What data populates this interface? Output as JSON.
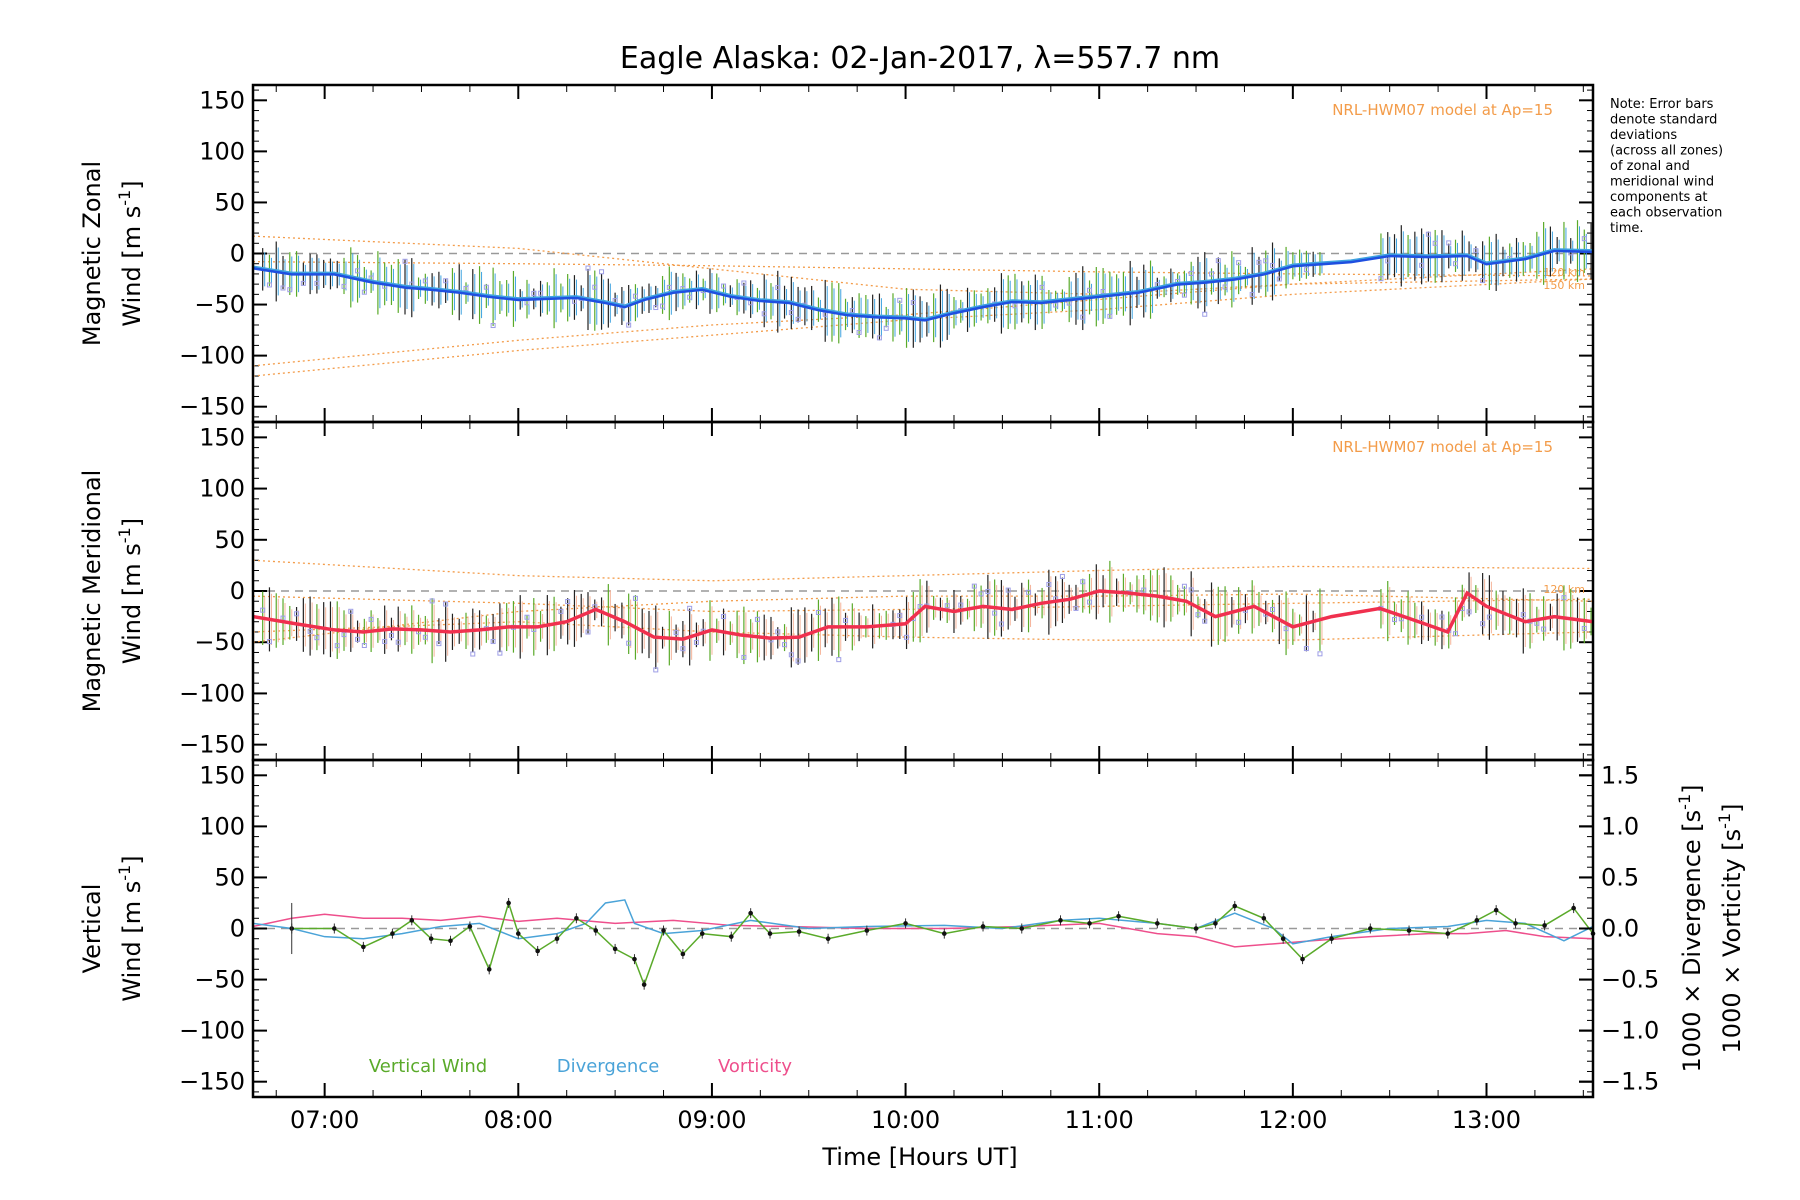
{
  "title": "Eagle Alaska: 02-Jan-2017, λ=557.7 nm",
  "note": [
    "Note: Error bars",
    "denote standard",
    "deviations",
    "(across all zones)",
    "of zonal and",
    "meridional wind",
    "components at",
    "each observation",
    "time."
  ],
  "xlabel": "Time [Hours UT]",
  "x_ticks": [
    "07:00",
    "08:00",
    "09:00",
    "10:00",
    "11:00",
    "12:00",
    "13:00"
  ],
  "colors": {
    "zonal": "#1f4fe0",
    "zonal_err": "#3fa3e0",
    "meridional": "#f0304e",
    "vertical": "#5aaa2a",
    "divergence": "#4aa3d8",
    "vorticity": "#ee4f8c",
    "model": "#f39c4a",
    "zone_marker": "#9e9ee6"
  },
  "panels": [
    {
      "id": "zonal",
      "ylabel_line1": "Magnetic Zonal",
      "ylabel_line2": "Wind [m s",
      "ylabel_sup": "-1",
      "ylabel_close": "]",
      "y_ticks": [
        "150",
        "100",
        "50",
        "0",
        "−50",
        "−100",
        "−150"
      ],
      "model_label": "NRL-HWM07 model at Ap=15",
      "alt_labels": [
        "120 km",
        "150 km"
      ]
    },
    {
      "id": "meridional",
      "ylabel_line1": "Magnetic Meridional",
      "ylabel_line2": "Wind [m s",
      "ylabel_sup": "-1",
      "ylabel_close": "]",
      "y_ticks": [
        "150",
        "100",
        "50",
        "0",
        "−50",
        "−100",
        "−150"
      ],
      "model_label": "NRL-HWM07 model at Ap=15",
      "alt_labels": [
        "120 km"
      ]
    },
    {
      "id": "vertical",
      "ylabel_line1": "Vertical",
      "ylabel_line2": "Wind [m s",
      "ylabel_sup": "-1",
      "ylabel_close": "]",
      "y_ticks": [
        "150",
        "100",
        "50",
        "0",
        "−50",
        "−100",
        "−150"
      ],
      "right_ticks": [
        "1.5",
        "1.0",
        "0.5",
        "0.0",
        "−0.5",
        "−1.0",
        "−1.5"
      ],
      "right_label_div": "1000 × Divergence [s",
      "right_label_vor": "1000 × Vorticity [s",
      "right_label_sup": "-1",
      "right_label_close": "]",
      "legend": [
        "Vertical Wind",
        "Divergence",
        "Vorticity"
      ]
    }
  ],
  "chart_data": {
    "type": "line",
    "title": "Eagle Alaska: 02-Jan-2017, λ=557.7 nm",
    "xlabel": "Time [Hours UT]",
    "xlim": [
      6.63,
      13.55
    ],
    "ylim": [
      -165,
      165
    ],
    "x_unit": "hours UT",
    "series": [
      {
        "name": "Magnetic Zonal Wind",
        "unit": "m s-1",
        "x": [
          6.63,
          6.83,
          7.05,
          7.25,
          7.42,
          7.55,
          7.7,
          7.85,
          8.0,
          8.15,
          8.3,
          8.45,
          8.55,
          8.65,
          8.8,
          8.95,
          9.1,
          9.25,
          9.4,
          9.55,
          9.7,
          9.85,
          10.0,
          10.1,
          10.25,
          10.4,
          10.55,
          10.7,
          10.85,
          11.0,
          11.2,
          11.4,
          11.55,
          11.7,
          11.85,
          12.0,
          12.15,
          12.3,
          12.5,
          12.7,
          12.9,
          13.0,
          13.2,
          13.35,
          13.55
        ],
        "y": [
          -14,
          -20,
          -20,
          -28,
          -33,
          -35,
          -38,
          -42,
          -45,
          -44,
          -43,
          -48,
          -52,
          -45,
          -38,
          -35,
          -42,
          -46,
          -48,
          -55,
          -60,
          -62,
          -63,
          -65,
          -58,
          -52,
          -47,
          -48,
          -45,
          -42,
          -38,
          -30,
          -28,
          -25,
          -20,
          -12,
          -10,
          -8,
          -2,
          -3,
          -2,
          -10,
          -5,
          3,
          2
        ]
      },
      {
        "name": "Magnetic Meridional Wind",
        "unit": "m s-1",
        "x": [
          6.63,
          6.85,
          7.05,
          7.2,
          7.35,
          7.5,
          7.65,
          7.8,
          7.95,
          8.1,
          8.25,
          8.4,
          8.55,
          8.7,
          8.85,
          9.0,
          9.15,
          9.3,
          9.45,
          9.6,
          9.8,
          10.0,
          10.1,
          10.25,
          10.4,
          10.55,
          10.7,
          10.85,
          11.0,
          11.15,
          11.3,
          11.45,
          11.6,
          11.8,
          12.0,
          12.2,
          12.45,
          12.65,
          12.8,
          12.9,
          13.0,
          13.2,
          13.35,
          13.55
        ],
        "y": [
          -25,
          -32,
          -38,
          -40,
          -37,
          -38,
          -40,
          -38,
          -35,
          -35,
          -30,
          -18,
          -30,
          -45,
          -47,
          -38,
          -43,
          -46,
          -45,
          -35,
          -35,
          -32,
          -15,
          -20,
          -15,
          -18,
          -12,
          -8,
          0,
          -2,
          -5,
          -10,
          -25,
          -15,
          -35,
          -25,
          -17,
          -30,
          -40,
          -2,
          -15,
          -30,
          -25,
          -30
        ]
      },
      {
        "name": "Vertical Wind",
        "unit": "m s-1",
        "x": [
          6.83,
          7.05,
          7.2,
          7.35,
          7.45,
          7.55,
          7.65,
          7.75,
          7.85,
          7.95,
          8.0,
          8.1,
          8.2,
          8.3,
          8.4,
          8.5,
          8.6,
          8.65,
          8.75,
          8.85,
          8.95,
          9.1,
          9.2,
          9.3,
          9.45,
          9.6,
          9.8,
          10.0,
          10.2,
          10.4,
          10.6,
          10.8,
          10.95,
          11.1,
          11.3,
          11.5,
          11.6,
          11.7,
          11.85,
          11.95,
          12.05,
          12.2,
          12.4,
          12.6,
          12.8,
          12.95,
          13.05,
          13.15,
          13.3,
          13.45,
          13.55
        ],
        "y": [
          0,
          0,
          -18,
          -5,
          8,
          -10,
          -12,
          2,
          -40,
          25,
          -5,
          -22,
          -10,
          10,
          -2,
          -20,
          -30,
          -55,
          -2,
          -25,
          -5,
          -8,
          15,
          -5,
          -3,
          -10,
          -2,
          5,
          -5,
          2,
          0,
          8,
          5,
          12,
          5,
          0,
          5,
          22,
          10,
          -10,
          -30,
          -10,
          0,
          -2,
          -5,
          8,
          18,
          5,
          3,
          20,
          -5
        ]
      },
      {
        "name": "Divergence",
        "unit": "1000 x s-1",
        "x": [
          6.63,
          6.83,
          7.0,
          7.2,
          7.4,
          7.6,
          7.8,
          8.0,
          8.2,
          8.35,
          8.45,
          8.55,
          8.6,
          8.75,
          8.95,
          9.2,
          9.5,
          9.8,
          10.2,
          10.5,
          10.8,
          11.0,
          11.3,
          11.5,
          11.7,
          11.9,
          12.0,
          12.2,
          12.5,
          12.8,
          13.0,
          13.2,
          13.4,
          13.55
        ],
        "y": [
          0.05,
          0.0,
          -0.08,
          -0.1,
          -0.05,
          0.02,
          0.05,
          -0.1,
          -0.05,
          0.05,
          0.25,
          0.28,
          0.05,
          -0.05,
          -0.02,
          0.08,
          0.0,
          0.02,
          0.03,
          0.0,
          0.08,
          0.1,
          0.05,
          0.0,
          0.15,
          0.0,
          -0.15,
          -0.08,
          0.0,
          0.02,
          0.08,
          0.05,
          -0.12,
          0.02
        ]
      },
      {
        "name": "Vorticity",
        "unit": "1000 x s-1",
        "x": [
          6.63,
          6.83,
          7.0,
          7.2,
          7.4,
          7.6,
          7.8,
          8.0,
          8.2,
          8.5,
          8.8,
          9.1,
          9.4,
          9.8,
          10.2,
          10.6,
          11.0,
          11.3,
          11.5,
          11.7,
          11.9,
          12.1,
          12.4,
          12.7,
          12.9,
          13.1,
          13.3,
          13.55
        ],
        "y": [
          0.02,
          0.1,
          0.14,
          0.1,
          0.1,
          0.08,
          0.12,
          0.07,
          0.1,
          0.05,
          0.08,
          0.03,
          0.02,
          0.0,
          0.0,
          0.02,
          0.05,
          -0.05,
          -0.08,
          -0.18,
          -0.15,
          -0.12,
          -0.08,
          -0.05,
          -0.05,
          -0.02,
          -0.08,
          -0.1
        ]
      }
    ],
    "panel_ylim_left": [
      -165,
      165
    ],
    "panel_ylim_right": [
      -1.5,
      1.5
    ]
  }
}
